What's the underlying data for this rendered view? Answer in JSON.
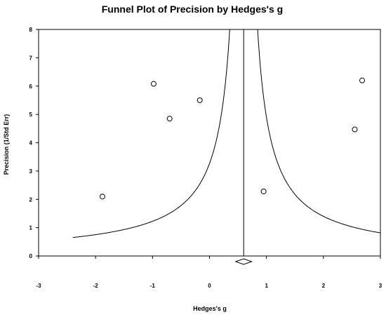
{
  "chart_data": {
    "type": "scatter",
    "title": "Funnel Plot of Precision by Hedges's g",
    "xlabel": "Hedges's g",
    "ylabel": "Precision (1/Std Err)",
    "xlim": [
      -3,
      3
    ],
    "ylim": [
      0,
      8
    ],
    "xticks": [
      "-3",
      "-2",
      "-1",
      "0",
      "1",
      "2",
      "3"
    ],
    "yticks": [
      "0",
      "1",
      "2",
      "3",
      "4",
      "5",
      "6",
      "7",
      "8"
    ],
    "grid": false,
    "legend": "none",
    "points": [
      {
        "x": -1.88,
        "y": 2.1
      },
      {
        "x": -0.98,
        "y": 6.08
      },
      {
        "x": -0.7,
        "y": 4.85
      },
      {
        "x": -0.17,
        "y": 5.5
      },
      {
        "x": 0.95,
        "y": 2.28
      },
      {
        "x": 2.55,
        "y": 4.47
      },
      {
        "x": 2.68,
        "y": 6.2
      }
    ],
    "summary_effect": 0.6,
    "funnel_ci_multiplier": 1.96,
    "funnel_x_extent": [
      -2.4,
      3.0
    ],
    "summary_diamond": {
      "center": 0.6,
      "lower": 0.46,
      "upper": 0.74
    },
    "colors": {
      "marker_edge": "#000000",
      "marker_fill": "#ffffff",
      "lines": "#000000"
    }
  }
}
